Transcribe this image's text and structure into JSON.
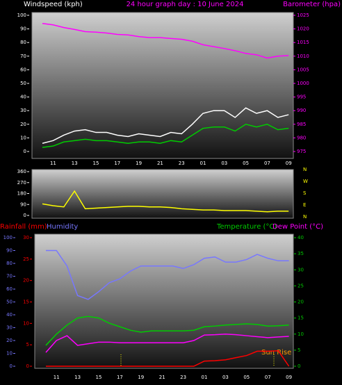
{
  "chart_data": [
    {
      "type": "line",
      "title": "24 hour graph day : 10 June 2024",
      "ylabel": "Windspeed (kph)",
      "y2label": "Barometer (hpa)",
      "categories": [
        null,
        "11",
        null,
        "13",
        null,
        "15",
        null,
        "17",
        null,
        "19",
        null,
        "21",
        null,
        "23",
        null,
        "01",
        null,
        "03",
        null,
        "05",
        null,
        "07",
        null,
        "09"
      ],
      "ylim": [
        0,
        100
      ],
      "yticks": [
        0,
        10,
        20,
        30,
        40,
        50,
        60,
        70,
        80,
        90,
        100
      ],
      "y2lim": [
        975,
        1025
      ],
      "y2ticks": [
        975,
        980,
        985,
        990,
        995,
        1000,
        1005,
        1010,
        1015,
        1020,
        1025
      ],
      "series": [
        {
          "color": "#ff00ff",
          "axis": "y2",
          "values": [
            1022,
            1021.5,
            1020.5,
            1019.8,
            1019,
            1018.8,
            1018.5,
            1018,
            1017.8,
            1017.2,
            1016.8,
            1016.8,
            1016.5,
            1016.2,
            1015.5,
            1014.2,
            1013.5,
            1012.8,
            1012,
            1011,
            1010.5,
            1009.3,
            1010,
            1010.2
          ]
        },
        {
          "color": "#ffffff",
          "values": [
            6,
            8,
            12,
            15,
            16,
            14,
            14,
            12,
            11,
            13,
            12,
            11,
            14,
            13,
            20,
            28,
            30,
            30,
            25,
            32,
            28,
            30,
            25,
            27
          ]
        },
        {
          "color": "#00cc00",
          "values": [
            3,
            4,
            7,
            8,
            9,
            8,
            8,
            7,
            6,
            7,
            7,
            6,
            8,
            7,
            12,
            17,
            18,
            18,
            15,
            20,
            18,
            20,
            16,
            17
          ]
        }
      ]
    },
    {
      "type": "line",
      "ylim": [
        0,
        360
      ],
      "yticks": [
        0,
        90,
        180,
        270,
        360
      ],
      "compass_labels": [
        "N",
        "W",
        "S",
        "E",
        "N"
      ],
      "series": [
        {
          "color": "#ffff00",
          "values": [
            95,
            80,
            70,
            200,
            55,
            60,
            65,
            70,
            75,
            75,
            70,
            70,
            65,
            55,
            50,
            45,
            45,
            40,
            40,
            40,
            35,
            30,
            35,
            35
          ]
        }
      ]
    },
    {
      "type": "line",
      "categories": [
        null,
        "11",
        null,
        "13",
        null,
        "15",
        null,
        "17",
        null,
        "19",
        null,
        "21",
        null,
        "23",
        null,
        "01",
        null,
        "03",
        null,
        "05",
        null,
        "07",
        null,
        "09"
      ],
      "ylim": [
        0,
        30
      ],
      "yticks": [
        0,
        5,
        10,
        15,
        20,
        25,
        30
      ],
      "y2lim": [
        0,
        40
      ],
      "y2ticks": [
        0,
        5,
        10,
        15,
        20,
        25,
        30,
        35,
        40
      ],
      "y3lim": [
        0,
        100
      ],
      "y3ticks": [
        0,
        10,
        20,
        30,
        40,
        50,
        60,
        70,
        80,
        90,
        100
      ],
      "annotations": [
        "Sun Rise"
      ],
      "series": [
        {
          "name": "Rainfall (mm)",
          "color": "#ff0000",
          "values": [
            0,
            0,
            0,
            0,
            0,
            0,
            0,
            0,
            0,
            0,
            0,
            0,
            0,
            0,
            0,
            1.2,
            1.3,
            1.5,
            2,
            2.5,
            3.5,
            3.5,
            3.6,
            0
          ]
        },
        {
          "name": "Humidity",
          "color": "#7777ff",
          "axis": "y3",
          "values": [
            90,
            90,
            78,
            55,
            52,
            58,
            65,
            68,
            74,
            78,
            78,
            78,
            78,
            76,
            79,
            84,
            85,
            81,
            81,
            83,
            87,
            84,
            82,
            82
          ]
        },
        {
          "name": "Temperature (°C)",
          "color": "#00cc00",
          "axis": "y2",
          "values": [
            6.5,
            10,
            12.8,
            15,
            15.5,
            15,
            13.4,
            12.3,
            11.2,
            10.6,
            11,
            11,
            11,
            11,
            11.2,
            12.3,
            12.5,
            12.8,
            13,
            13.2,
            13,
            12.5,
            12.6,
            12.8
          ]
        },
        {
          "name": "Dew Point (°C)",
          "color": "#ff00ff",
          "axis": "y2",
          "values": [
            4.3,
            8,
            9.5,
            6.5,
            7,
            7.5,
            7.5,
            7.3,
            7.3,
            7.3,
            7.3,
            7.3,
            7.3,
            7.3,
            8,
            9.7,
            9.8,
            10,
            9.8,
            9.5,
            9.2,
            8.9,
            9.1,
            9.3
          ]
        }
      ]
    }
  ]
}
